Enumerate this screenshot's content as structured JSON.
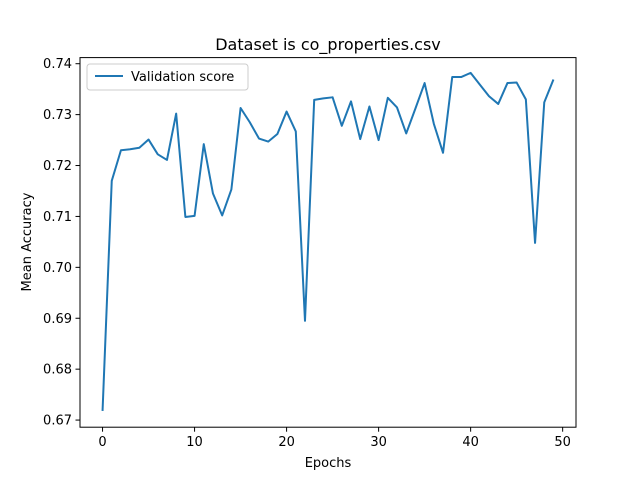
{
  "chart_data": {
    "type": "line",
    "title": "Dataset is co_properties.csv",
    "xlabel": "Epochs",
    "ylabel": "Mean Accuracy",
    "xlim": [
      -2.45,
      51.45
    ],
    "ylim": [
      0.6686,
      0.7412
    ],
    "xticks": [
      0,
      10,
      20,
      30,
      40,
      50
    ],
    "xtick_labels": [
      "0",
      "10",
      "20",
      "30",
      "40",
      "50"
    ],
    "yticks": [
      0.67,
      0.68,
      0.69,
      0.7,
      0.71,
      0.72,
      0.73,
      0.74
    ],
    "ytick_labels": [
      "0.67",
      "0.68",
      "0.69",
      "0.70",
      "0.71",
      "0.72",
      "0.73",
      "0.74"
    ],
    "grid": false,
    "legend_position": "upper-left",
    "series": [
      {
        "name": "Validation score",
        "color": "#1f77b4",
        "x": [
          0,
          1,
          2,
          3,
          4,
          5,
          6,
          7,
          8,
          9,
          10,
          11,
          12,
          13,
          14,
          15,
          16,
          17,
          18,
          19,
          20,
          21,
          22,
          23,
          24,
          25,
          26,
          27,
          28,
          29,
          30,
          31,
          32,
          33,
          34,
          35,
          36,
          37,
          38,
          39,
          40,
          41,
          42,
          43,
          44,
          45,
          46,
          47,
          48,
          49
        ],
        "y": [
          0.6718,
          0.717,
          0.723,
          0.7232,
          0.7235,
          0.7251,
          0.7222,
          0.7211,
          0.7302,
          0.7099,
          0.7101,
          0.7242,
          0.7145,
          0.7102,
          0.7153,
          0.7313,
          0.7285,
          0.7253,
          0.7247,
          0.7262,
          0.7306,
          0.7267,
          0.6895,
          0.7329,
          0.7332,
          0.7334,
          0.7278,
          0.7326,
          0.7252,
          0.7316,
          0.725,
          0.7333,
          0.7314,
          0.7263,
          0.7312,
          0.7362,
          0.7282,
          0.7225,
          0.7374,
          0.7374,
          0.7382,
          0.7359,
          0.7336,
          0.7321,
          0.7362,
          0.7363,
          0.733,
          0.7048,
          0.7324,
          0.7369
        ]
      }
    ]
  }
}
